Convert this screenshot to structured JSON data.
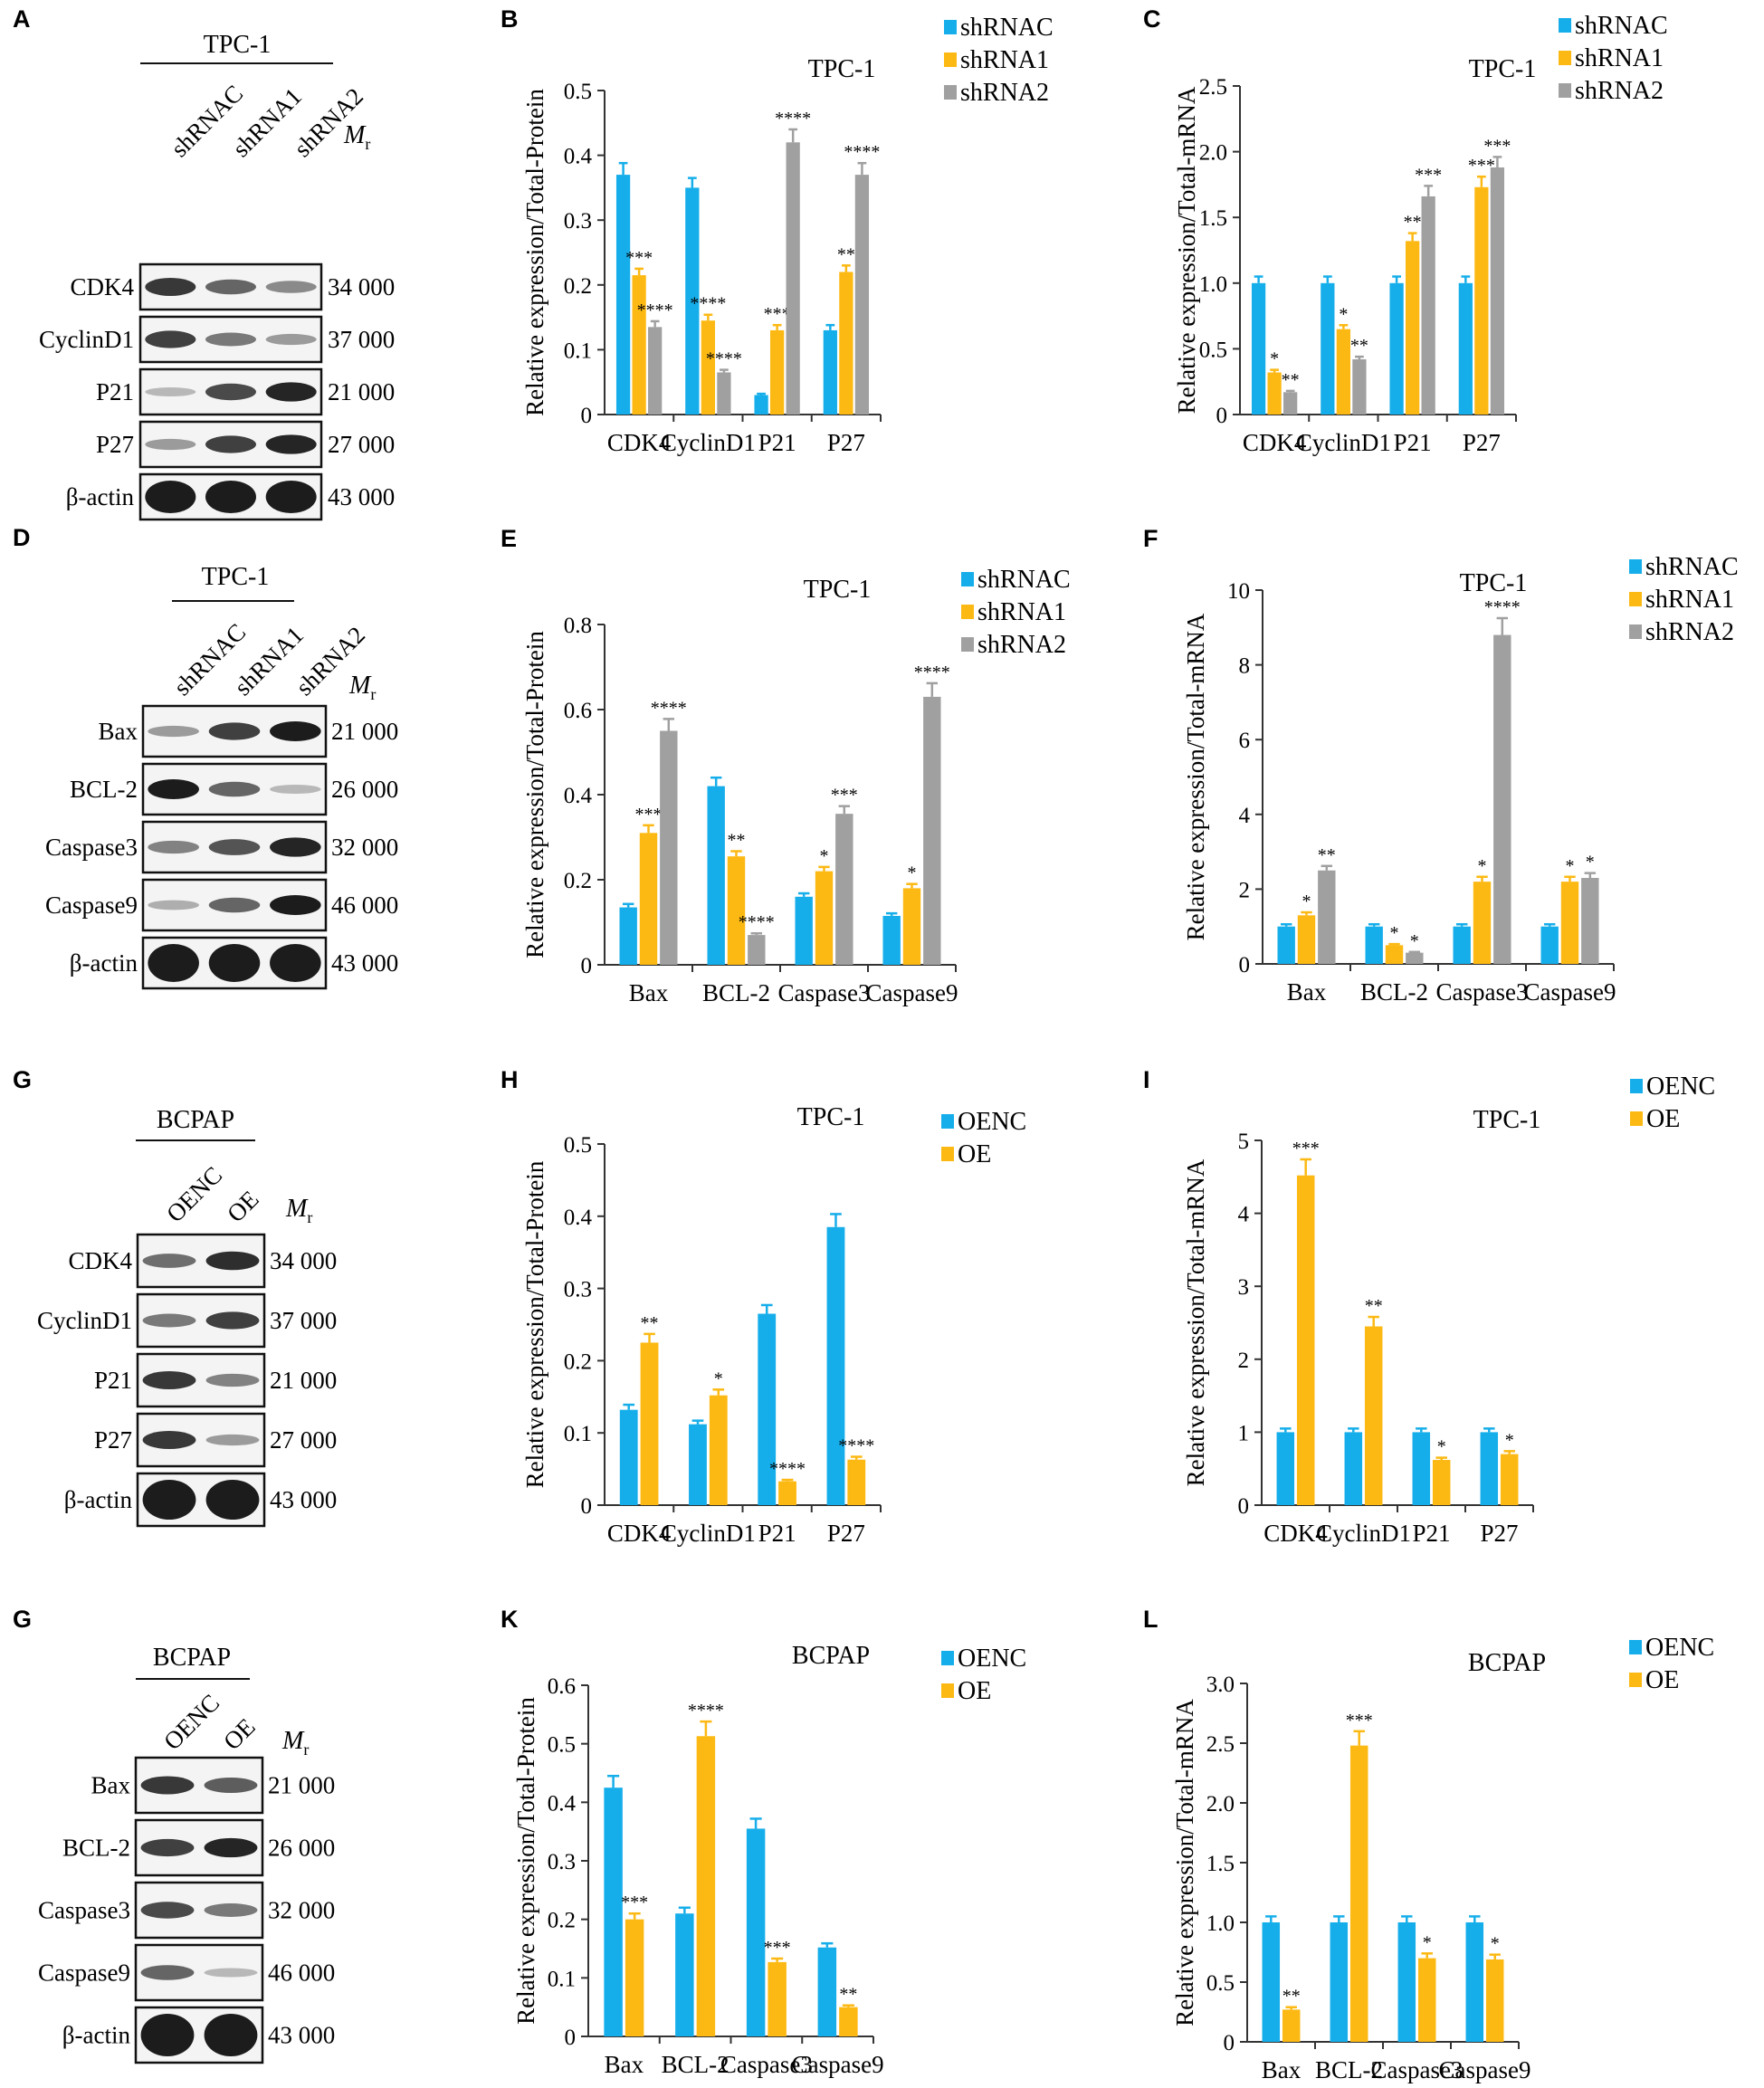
{
  "colors": {
    "blue": "#16AEEA",
    "yellow": "#FDB913",
    "gray": "#A0A0A0",
    "blot_bg": "#f4f4f4",
    "band": "#1c1c1c"
  },
  "figure": {
    "blots": [
      {
        "letter": "A",
        "cell": "TPC-1",
        "lanes": [
          "shRNAC",
          "shRNA1",
          "shRNA2"
        ],
        "mr_label": "M",
        "mr_sub": "r",
        "rows": [
          {
            "protein": "CDK4",
            "mr": "34 000",
            "intensity": [
              0.85,
              0.6,
              0.4
            ]
          },
          {
            "protein": "CyclinD1",
            "mr": "37 000",
            "intensity": [
              0.8,
              0.5,
              0.3
            ]
          },
          {
            "protein": "P21",
            "mr": "21 000",
            "intensity": [
              0.15,
              0.75,
              0.95
            ]
          },
          {
            "protein": "P27",
            "mr": "27 000",
            "intensity": [
              0.3,
              0.8,
              0.95
            ]
          },
          {
            "protein": "β-actin",
            "mr": "43 000",
            "intensity": [
              1,
              1,
              1
            ]
          }
        ]
      },
      {
        "letter": "D",
        "cell": "TPC-1",
        "lanes": [
          "shRNAC",
          "shRNA1",
          "shRNA2"
        ],
        "mr_label": "M",
        "mr_sub": "r",
        "rows": [
          {
            "protein": "Bax",
            "mr": "21 000",
            "intensity": [
              0.3,
              0.8,
              1
            ]
          },
          {
            "protein": "BCL-2",
            "mr": "26 000",
            "intensity": [
              1,
              0.6,
              0.15
            ]
          },
          {
            "protein": "Caspase3",
            "mr": "32 000",
            "intensity": [
              0.45,
              0.7,
              0.95
            ]
          },
          {
            "protein": "Caspase9",
            "mr": "46 000",
            "intensity": [
              0.2,
              0.6,
              1
            ]
          },
          {
            "protein": "β-actin",
            "mr": "43 000",
            "intensity": [
              1,
              1,
              1
            ]
          }
        ]
      },
      {
        "letter": "G",
        "cell": "BCPAP",
        "lanes": [
          "OENC",
          "OE"
        ],
        "mr_label": "M",
        "mr_sub": "r",
        "rows": [
          {
            "protein": "CDK4",
            "mr": "34 000",
            "intensity": [
              0.55,
              0.9
            ]
          },
          {
            "protein": "CyclinD1",
            "mr": "37 000",
            "intensity": [
              0.5,
              0.8
            ]
          },
          {
            "protein": "P21",
            "mr": "21 000",
            "intensity": [
              0.85,
              0.45
            ]
          },
          {
            "protein": "P27",
            "mr": "27 000",
            "intensity": [
              0.85,
              0.3
            ]
          },
          {
            "protein": "β-actin",
            "mr": "43 000",
            "intensity": [
              1,
              1
            ]
          }
        ]
      },
      {
        "letter": "G",
        "cell": "BCPAP",
        "lanes": [
          "OENC",
          "OE"
        ],
        "mr_label": "M",
        "mr_sub": "r",
        "rows": [
          {
            "protein": "Bax",
            "mr": "21 000",
            "intensity": [
              0.85,
              0.65
            ]
          },
          {
            "protein": "BCL-2",
            "mr": "26 000",
            "intensity": [
              0.8,
              0.95
            ]
          },
          {
            "protein": "Caspase3",
            "mr": "32 000",
            "intensity": [
              0.75,
              0.5
            ]
          },
          {
            "protein": "Caspase9",
            "mr": "46 000",
            "intensity": [
              0.6,
              0.15
            ]
          },
          {
            "protein": "β-actin",
            "mr": "43 000",
            "intensity": [
              1,
              1
            ]
          }
        ]
      }
    ]
  },
  "chart_data": [
    {
      "letter": "B",
      "type": "bar",
      "title": "TPC-1",
      "ylabel": "Relative expression/Total-Protein",
      "xlabel": "",
      "ylim": [
        0,
        0.5
      ],
      "yticks": [
        "0",
        "0.1",
        "0.2",
        "0.3",
        "0.4",
        "0.5"
      ],
      "categories": [
        "CDK4",
        "CyclinD1",
        "P21",
        "P27"
      ],
      "series": [
        {
          "name": "shRNAC",
          "color": "#16AEEA",
          "values": [
            0.37,
            0.35,
            0.03,
            0.13
          ],
          "errors": [
            0.018,
            0.015,
            0.002,
            0.008
          ],
          "sig": [
            "",
            "",
            "",
            ""
          ]
        },
        {
          "name": "shRNA1",
          "color": "#FDB913",
          "values": [
            0.215,
            0.145,
            0.13,
            0.22
          ],
          "errors": [
            0.01,
            0.009,
            0.008,
            0.01
          ],
          "sig": [
            "***",
            "****",
            "***",
            "**"
          ]
        },
        {
          "name": "shRNA2",
          "color": "#A0A0A0",
          "values": [
            0.135,
            0.065,
            0.42,
            0.37
          ],
          "errors": [
            0.009,
            0.004,
            0.02,
            0.018
          ],
          "sig": [
            "****",
            "****",
            "****",
            "****"
          ]
        }
      ],
      "legend": "top-right"
    },
    {
      "letter": "C",
      "type": "bar",
      "title": "TPC-1",
      "ylabel": "Relative expression/Total-mRNA",
      "xlabel": "",
      "ylim": [
        0,
        2.5
      ],
      "yticks": [
        "0",
        "0.5",
        "1.0",
        "1.5",
        "2.0",
        "2.5"
      ],
      "categories": [
        "CDK4",
        "CyclinD1",
        "P21",
        "P27"
      ],
      "series": [
        {
          "name": "shRNAC",
          "color": "#16AEEA",
          "values": [
            1.0,
            1.0,
            1.0,
            1.0
          ],
          "errors": [
            0.05,
            0.05,
            0.05,
            0.05
          ],
          "sig": [
            "",
            "",
            "",
            ""
          ]
        },
        {
          "name": "shRNA1",
          "color": "#FDB913",
          "values": [
            0.32,
            0.65,
            1.32,
            1.73
          ],
          "errors": [
            0.02,
            0.03,
            0.06,
            0.08
          ],
          "sig": [
            "*",
            "*",
            "**",
            "***"
          ]
        },
        {
          "name": "shRNA2",
          "color": "#A0A0A0",
          "values": [
            0.17,
            0.42,
            1.66,
            1.88
          ],
          "errors": [
            0.01,
            0.02,
            0.08,
            0.08
          ],
          "sig": [
            "**",
            "**",
            "***",
            "***"
          ]
        }
      ],
      "legend": "top-right"
    },
    {
      "letter": "E",
      "type": "bar",
      "title": "TPC-1",
      "ylabel": "Relative expression/Total-Protein",
      "xlabel": "",
      "ylim": [
        0,
        0.8
      ],
      "yticks": [
        "0",
        "0.2",
        "0.4",
        "0.6",
        "0.8"
      ],
      "categories": [
        "Bax",
        "BCL-2",
        "Caspase3",
        "Caspase9"
      ],
      "series": [
        {
          "name": "shRNAC",
          "color": "#16AEEA",
          "values": [
            0.135,
            0.42,
            0.16,
            0.115
          ],
          "errors": [
            0.008,
            0.02,
            0.008,
            0.006
          ],
          "sig": [
            "",
            "",
            "",
            ""
          ]
        },
        {
          "name": "shRNA1",
          "color": "#FDB913",
          "values": [
            0.31,
            0.255,
            0.22,
            0.18
          ],
          "errors": [
            0.018,
            0.012,
            0.01,
            0.01
          ],
          "sig": [
            "***",
            "**",
            "*",
            "*"
          ]
        },
        {
          "name": "shRNA2",
          "color": "#A0A0A0",
          "values": [
            0.55,
            0.07,
            0.355,
            0.63
          ],
          "errors": [
            0.028,
            0.004,
            0.018,
            0.032
          ],
          "sig": [
            "****",
            "****",
            "***",
            "****"
          ]
        }
      ],
      "legend": "top-right"
    },
    {
      "letter": "F",
      "type": "bar",
      "title": "TPC-1",
      "ylabel": "Relative expression/Total-mRNA",
      "xlabel": "",
      "ylim": [
        0,
        10
      ],
      "yticks": [
        "0",
        "2",
        "4",
        "6",
        "8",
        "10"
      ],
      "categories": [
        "Bax",
        "BCL-2",
        "Caspase3",
        "Caspase9"
      ],
      "series": [
        {
          "name": "shRNAC",
          "color": "#16AEEA",
          "values": [
            1.0,
            1.0,
            1.0,
            1.0
          ],
          "errors": [
            0.06,
            0.06,
            0.06,
            0.06
          ],
          "sig": [
            "",
            "",
            "",
            ""
          ]
        },
        {
          "name": "shRNA1",
          "color": "#FDB913",
          "values": [
            1.3,
            0.5,
            2.2,
            2.2
          ],
          "errors": [
            0.08,
            0.03,
            0.13,
            0.13
          ],
          "sig": [
            "*",
            "*",
            "*",
            "*"
          ]
        },
        {
          "name": "shRNA2",
          "color": "#A0A0A0",
          "values": [
            2.5,
            0.3,
            8.8,
            2.3
          ],
          "errors": [
            0.12,
            0.02,
            0.45,
            0.13
          ],
          "sig": [
            "**",
            "*",
            "****",
            "*"
          ]
        }
      ],
      "legend": "top-right"
    },
    {
      "letter": "H",
      "type": "bar",
      "title": "TPC-1",
      "ylabel": "Relative expression/Total-Protein",
      "xlabel": "",
      "ylim": [
        0,
        0.5
      ],
      "yticks": [
        "0",
        "0.1",
        "0.2",
        "0.3",
        "0.4",
        "0.5"
      ],
      "categories": [
        "CDK4",
        "CyclinD1",
        "P21",
        "P27"
      ],
      "series": [
        {
          "name": "OENC",
          "color": "#16AEEA",
          "values": [
            0.132,
            0.112,
            0.265,
            0.385
          ],
          "errors": [
            0.007,
            0.005,
            0.012,
            0.018
          ],
          "sig": [
            "",
            "",
            "",
            ""
          ]
        },
        {
          "name": "OE",
          "color": "#FDB913",
          "values": [
            0.225,
            0.152,
            0.033,
            0.063
          ],
          "errors": [
            0.012,
            0.008,
            0.002,
            0.004
          ],
          "sig": [
            "**",
            "*",
            "****",
            "****"
          ]
        }
      ],
      "legend": "top-right"
    },
    {
      "letter": "I",
      "type": "bar",
      "title": "TPC-1",
      "ylabel": "Relative expression/Total-mRNA",
      "xlabel": "",
      "ylim": [
        0,
        5
      ],
      "yticks": [
        "0",
        "1",
        "2",
        "3",
        "4",
        "5"
      ],
      "categories": [
        "CDK4",
        "CyclinD1",
        "P21",
        "P27"
      ],
      "series": [
        {
          "name": "OENC",
          "color": "#16AEEA",
          "values": [
            1.0,
            1.0,
            1.0,
            1.0
          ],
          "errors": [
            0.05,
            0.05,
            0.05,
            0.05
          ],
          "sig": [
            "",
            "",
            "",
            ""
          ]
        },
        {
          "name": "OE",
          "color": "#FDB913",
          "values": [
            4.52,
            2.45,
            0.62,
            0.7
          ],
          "errors": [
            0.22,
            0.13,
            0.03,
            0.04
          ],
          "sig": [
            "***",
            "**",
            "*",
            "*"
          ]
        }
      ],
      "legend": "top-right"
    },
    {
      "letter": "K",
      "type": "bar",
      "title": "BCPAP",
      "ylabel": "Relative expression/Total-Protein",
      "xlabel": "",
      "ylim": [
        0,
        0.6
      ],
      "yticks": [
        "0",
        "0.1",
        "0.2",
        "0.3",
        "0.4",
        "0.5",
        "0.6"
      ],
      "categories": [
        "Bax",
        "BCL-2",
        "Caspase3",
        "Caspase9"
      ],
      "series": [
        {
          "name": "OENC",
          "color": "#16AEEA",
          "values": [
            0.425,
            0.21,
            0.355,
            0.152
          ],
          "errors": [
            0.02,
            0.01,
            0.017,
            0.007
          ],
          "sig": [
            "",
            "",
            "",
            ""
          ]
        },
        {
          "name": "OE",
          "color": "#FDB913",
          "values": [
            0.2,
            0.513,
            0.127,
            0.05
          ],
          "errors": [
            0.01,
            0.025,
            0.006,
            0.003
          ],
          "sig": [
            "***",
            "****",
            "***",
            "**"
          ]
        }
      ],
      "legend": "top-right"
    },
    {
      "letter": "L",
      "type": "bar",
      "title": "BCPAP",
      "ylabel": "Relative expression/Total-mRNA",
      "xlabel": "",
      "ylim": [
        0,
        3.0
      ],
      "yticks": [
        "0",
        "0.5",
        "1.0",
        "1.5",
        "2.0",
        "2.5",
        "3.0"
      ],
      "categories": [
        "Bax",
        "BCL-2",
        "Caspase3",
        "Caspase9"
      ],
      "series": [
        {
          "name": "OENC",
          "color": "#16AEEA",
          "values": [
            1.0,
            1.0,
            1.0,
            1.0
          ],
          "errors": [
            0.05,
            0.05,
            0.05,
            0.05
          ],
          "sig": [
            "",
            "",
            "",
            ""
          ]
        },
        {
          "name": "OE",
          "color": "#FDB913",
          "values": [
            0.27,
            2.48,
            0.7,
            0.69
          ],
          "errors": [
            0.02,
            0.12,
            0.04,
            0.04
          ],
          "sig": [
            "**",
            "***",
            "*",
            "*"
          ]
        }
      ],
      "legend": "top-right"
    }
  ]
}
